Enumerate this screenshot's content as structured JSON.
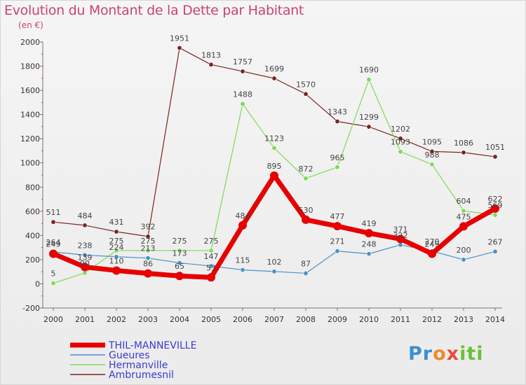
{
  "chart_data": {
    "type": "line",
    "title": "Evolution du Montant de la Dette par Habitant",
    "subtitle": "(en €)",
    "x": [
      "2000",
      "2001",
      "2002",
      "2003",
      "2004",
      "2005",
      "2006",
      "2007",
      "2008",
      "2009",
      "2010",
      "2011",
      "2012",
      "2013",
      "2014"
    ],
    "ylim": [
      -200,
      2000
    ],
    "yticks": [
      -200,
      0,
      200,
      400,
      600,
      800,
      1000,
      1200,
      1400,
      1600,
      1800,
      2000
    ],
    "grid": false,
    "legend_placement": "bottom-left",
    "series": [
      {
        "name": "THIL-MANNEVILLE",
        "color": "#e60000",
        "width": 7,
        "values": [
          249,
          139,
          110,
          86,
          65,
          53,
          484,
          895,
          530,
          477,
          419,
          371,
          249,
          475,
          622
        ]
      },
      {
        "name": "Gueures",
        "color": "#4a90c8",
        "width": 1.2,
        "values": [
          264,
          238,
          224,
          213,
          173,
          147,
          115,
          102,
          87,
          271,
          248,
          322,
          270,
          200,
          267
        ]
      },
      {
        "name": "Hermanville",
        "color": "#7ed957",
        "width": 1.2,
        "values": [
          5,
          90,
          275,
          275,
          275,
          275,
          1488,
          1123,
          872,
          965,
          1690,
          1093,
          988,
          604,
          569
        ]
      },
      {
        "name": "Ambrumesnil",
        "color": "#7a2424",
        "width": 1.2,
        "values": [
          511,
          484,
          431,
          392,
          1951,
          1813,
          1757,
          1699,
          1570,
          1343,
          1299,
          1202,
          1095,
          1086,
          1051
        ]
      }
    ]
  },
  "logo": {
    "text": [
      "Pr",
      "o",
      "x",
      "iti"
    ]
  }
}
